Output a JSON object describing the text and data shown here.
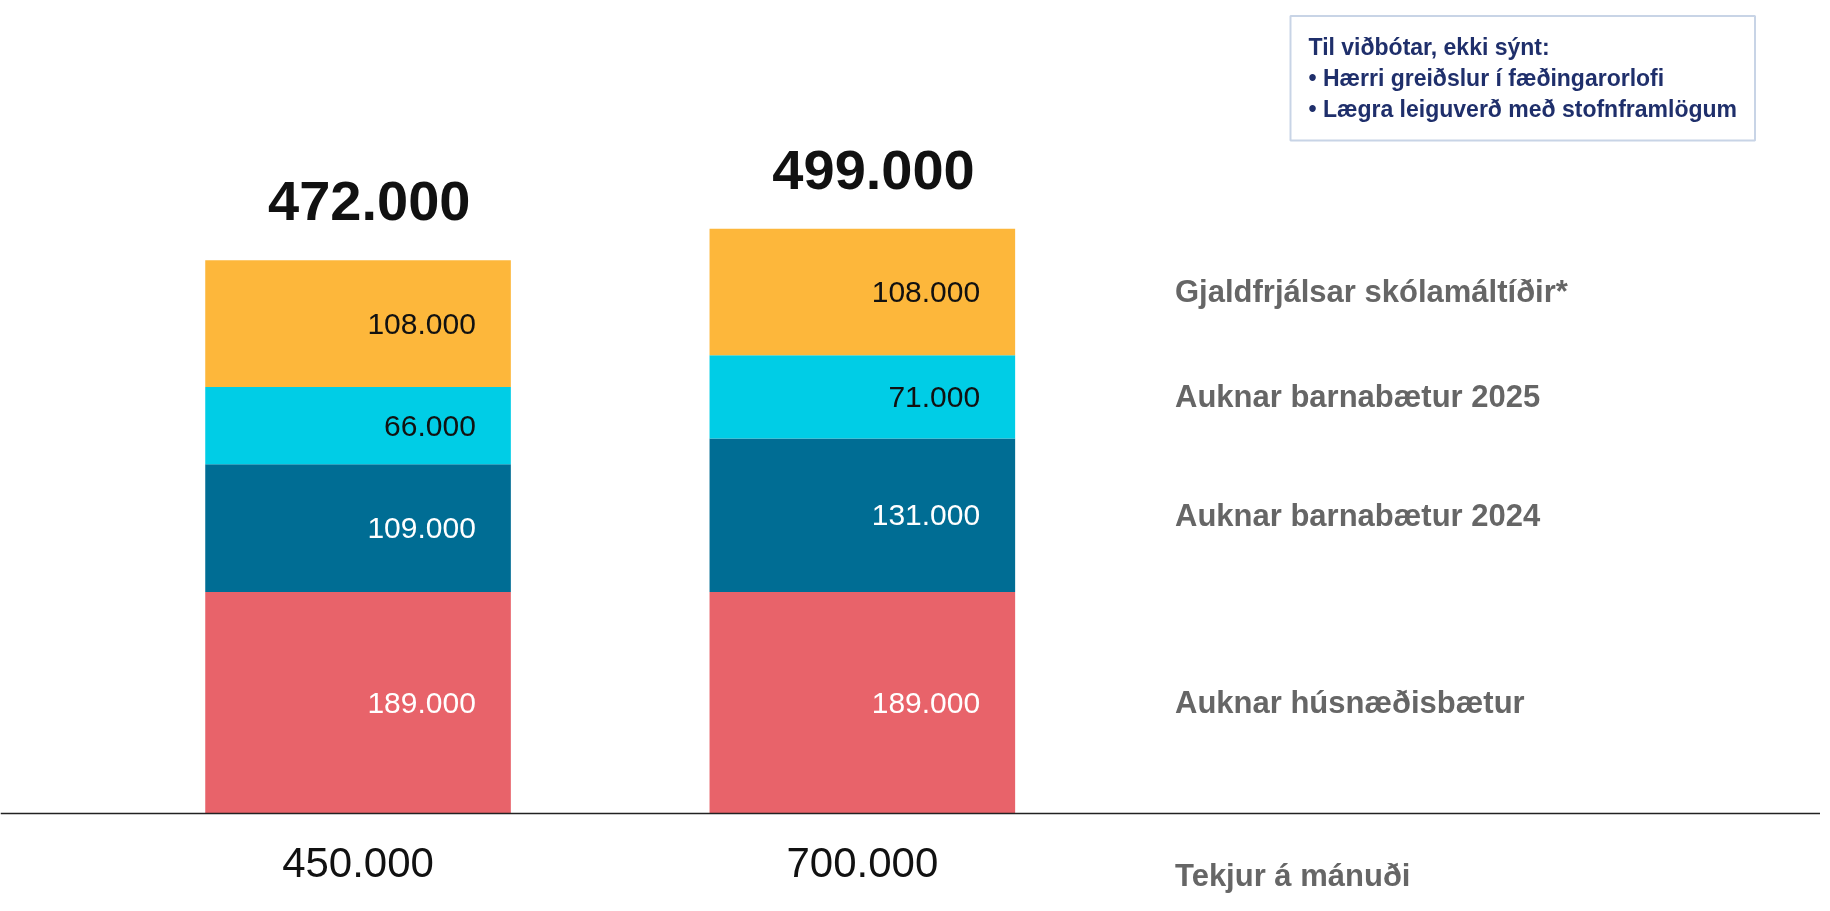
{
  "chart_data": {
    "type": "bar",
    "stacked": true,
    "categories": [
      "450.000",
      "700.000"
    ],
    "xlabel": "Tekjur á mánuði",
    "series": [
      {
        "name": "Auknar húsnæðisbætur",
        "color": "#e8636a",
        "values": [
          189000,
          189000
        ],
        "value_labels": [
          "189.000",
          "189.000"
        ]
      },
      {
        "name": "Auknar barnabætur 2024",
        "color": "#006d94",
        "values": [
          109000,
          131000
        ],
        "value_labels": [
          "109.000",
          "131.000"
        ]
      },
      {
        "name": "Auknar barnabætur 2025",
        "color": "#00cde6",
        "values": [
          66000,
          71000
        ],
        "value_labels": [
          "66.000",
          "71.000"
        ]
      },
      {
        "name": "Gjaldfrjálsar skólamáltíðir*",
        "color": "#fdb73b",
        "values": [
          108000,
          108000
        ],
        "value_labels": [
          "108.000",
          "108.000"
        ]
      }
    ],
    "totals": [
      "472.000",
      "499.000"
    ],
    "annotations": [
      "Til viðbótar, ekki sýnt:\n• Hærri greiðslur í fæðingarorlofi\n• Lægra leiguverð með stofnframlögum"
    ],
    "legend": false,
    "grid": false
  }
}
